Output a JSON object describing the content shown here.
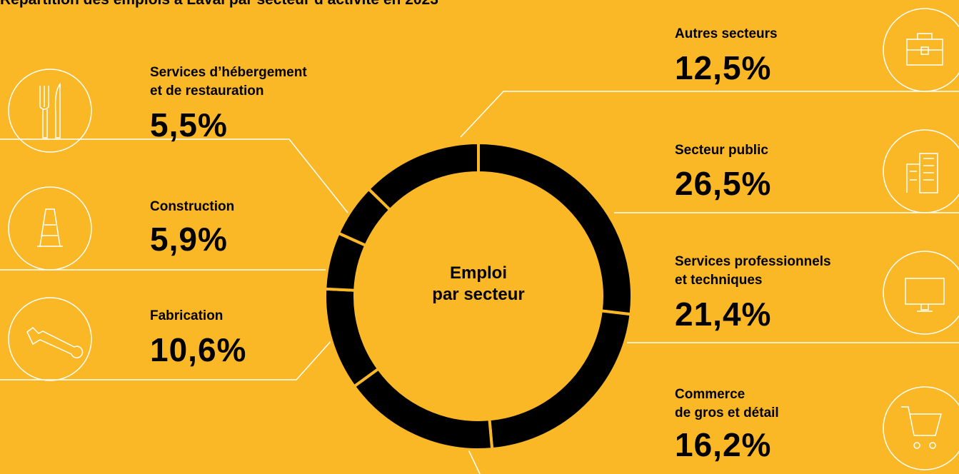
{
  "chart_data": {
    "type": "pie",
    "donut": true,
    "title": "Répartition des emplois à Laval par secteur d’activité en 2023",
    "center_label": "Emploi\npar secteur",
    "categories": [
      "Secteur public",
      "Services professionnels\net techniques",
      "Commerce\nde gros et détail",
      "Fabrication",
      "Construction",
      "Services d’hébergement\net de restauration",
      "Autres secteurs"
    ],
    "values": [
      26.5,
      21.4,
      16.2,
      10.6,
      5.9,
      5.5,
      12.5
    ],
    "value_labels": [
      "26,5%",
      "21,4%",
      "16,2%",
      "10,6%",
      "5,9%",
      "5,5%",
      "12,5%"
    ],
    "color": "#000000"
  }
}
